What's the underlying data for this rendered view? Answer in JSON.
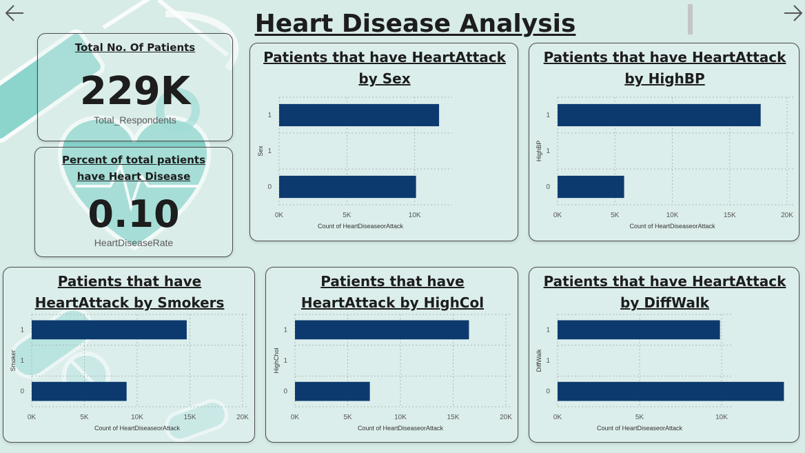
{
  "header": {
    "title": "Heart Disease Analysis",
    "back_icon": "arrow-left-icon",
    "forward_icon": "arrow-right-icon"
  },
  "kpis": {
    "total_patients": {
      "title": "Total No. Of Patients",
      "value": "229K",
      "label": "Total_Respondents"
    },
    "heart_disease_rate": {
      "title_line1": "Percent of total patients",
      "title_line2": "have Heart Disease",
      "value": "0.10",
      "label": "HeartDiseaseRate"
    }
  },
  "colors": {
    "bar": "#0d3a6e",
    "background": "#d7ebe7",
    "accent": "#7fd2c9"
  },
  "background_icons": [
    "syringe-icon",
    "heart-pulse-icon",
    "stethoscope-icon",
    "pill-icon"
  ],
  "chart_data": [
    {
      "type": "bar",
      "orientation": "horizontal",
      "title": [
        "Patients that have HeartAttack",
        "by Sex"
      ],
      "categories": [
        "1",
        "1",
        "0"
      ],
      "values": [
        11800,
        0,
        10100
      ],
      "xlabel": "Count of HeartDiseaseorAttack",
      "ylabel": "Sex",
      "xlim": [
        0,
        12000
      ],
      "xticks": [
        0,
        5000,
        10000
      ],
      "xtick_labels": [
        "0K",
        "5K",
        "10K"
      ],
      "grid": true
    },
    {
      "type": "bar",
      "orientation": "horizontal",
      "title": [
        "Patients that have HeartAttack",
        "by HighBP"
      ],
      "categories": [
        "1",
        "1",
        "0"
      ],
      "values": [
        17700,
        0,
        5800
      ],
      "xlabel": "Count of HeartDiseaseorAttack",
      "ylabel": "HighBP",
      "xlim": [
        0,
        20000
      ],
      "xticks": [
        0,
        5000,
        10000,
        15000,
        20000
      ],
      "xtick_labels": [
        "0K",
        "5K",
        "10K",
        "15K",
        "20K"
      ],
      "grid": true
    },
    {
      "type": "bar",
      "orientation": "horizontal",
      "title": [
        "Patients that have",
        "HeartAttack by Smokers"
      ],
      "categories": [
        "1",
        "1",
        "0"
      ],
      "values": [
        14700,
        0,
        9000
      ],
      "xlabel": "Count of HeartDiseaseorAttack",
      "ylabel": "Smoker",
      "xlim": [
        0,
        20000
      ],
      "xticks": [
        0,
        5000,
        10000,
        15000,
        20000
      ],
      "xtick_labels": [
        "0K",
        "5K",
        "10K",
        "15K",
        "20K"
      ],
      "grid": true
    },
    {
      "type": "bar",
      "orientation": "horizontal",
      "title": [
        "Patients that have",
        "HeartAttack by HighCol"
      ],
      "categories": [
        "1",
        "1",
        "0"
      ],
      "values": [
        16500,
        0,
        7100
      ],
      "xlabel": "Count of HeartDiseaseorAttack",
      "ylabel": "HighChol",
      "xlim": [
        0,
        20000
      ],
      "xticks": [
        0,
        5000,
        10000,
        15000,
        20000
      ],
      "xtick_labels": [
        "0K",
        "5K",
        "10K",
        "15K",
        "20K"
      ],
      "grid": true
    },
    {
      "type": "bar",
      "orientation": "horizontal",
      "title": [
        "Patients that have HeartAttack",
        "by DiffWalk"
      ],
      "categories": [
        "1",
        "1",
        "0"
      ],
      "values": [
        9900,
        0,
        13800
      ],
      "xlabel": "Count of HeartDiseaseorAttack",
      "ylabel": "DiffWalk",
      "xlim": [
        0,
        14000
      ],
      "xticks": [
        0,
        5000,
        10000
      ],
      "xtick_labels": [
        "0K",
        "5K",
        "10K"
      ],
      "grid": true
    }
  ]
}
